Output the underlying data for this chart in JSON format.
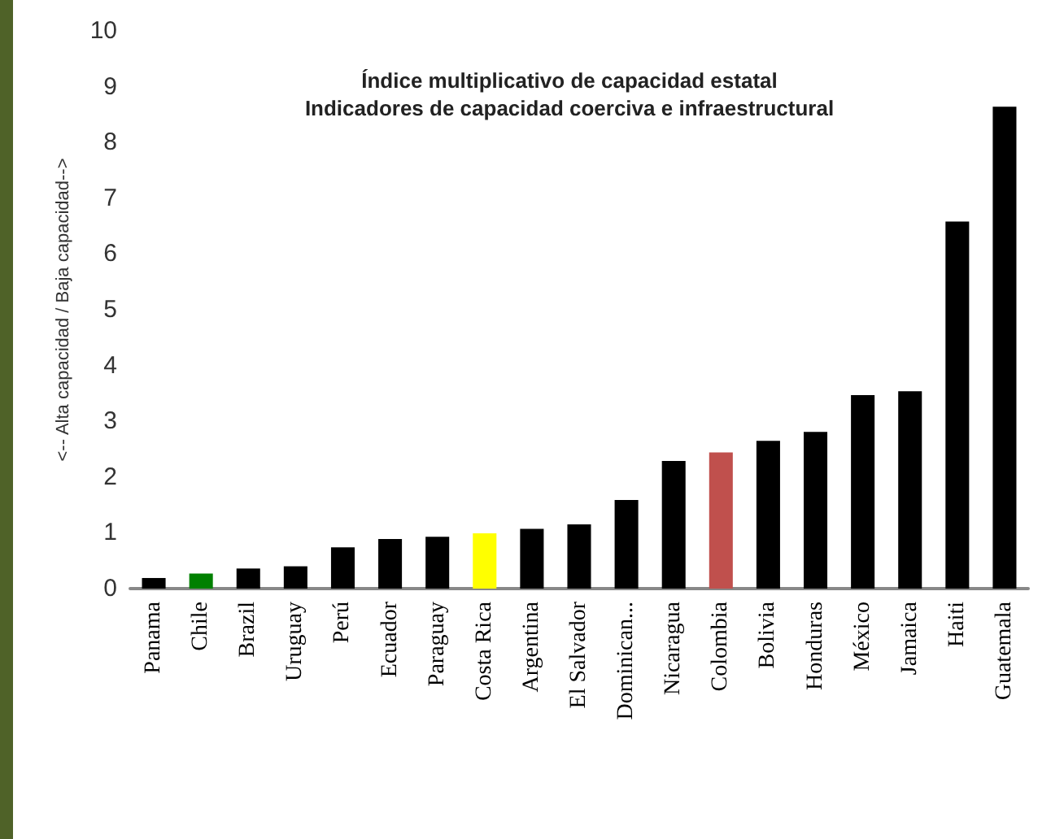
{
  "chart_data": {
    "type": "bar",
    "title": "Índice multiplicativo de capacidad estatal\nIndicadores de capacidad coerciva e infraestructural",
    "ylabel": "<-- Alta capacidad / Baja capacidad-->",
    "categories": [
      "Panama",
      "Chile",
      "Brazil",
      "Uruguay",
      "Perú",
      "Ecuador",
      "Paraguay",
      "Costa Rica",
      "Argentina",
      "El Salvador",
      "Dominican...",
      "Nicaragua",
      "Colombia",
      "Bolivia",
      "Honduras",
      "México",
      "Jamaica",
      "Haiti",
      "Guatemala"
    ],
    "values": [
      0.19,
      0.27,
      0.36,
      0.4,
      0.74,
      0.89,
      0.93,
      0.99,
      1.07,
      1.15,
      1.59,
      2.29,
      2.44,
      2.65,
      2.81,
      3.47,
      3.54,
      6.58,
      8.64
    ],
    "colors": [
      "#000000",
      "#008000",
      "#000000",
      "#000000",
      "#000000",
      "#000000",
      "#000000",
      "#ffff00",
      "#000000",
      "#000000",
      "#000000",
      "#000000",
      "#c0504d",
      "#000000",
      "#000000",
      "#000000",
      "#000000",
      "#000000",
      "#000000"
    ],
    "ylim": [
      0,
      10
    ],
    "yticks": [
      0,
      1,
      2,
      3,
      4,
      5,
      6,
      7,
      8,
      9,
      10
    ]
  }
}
